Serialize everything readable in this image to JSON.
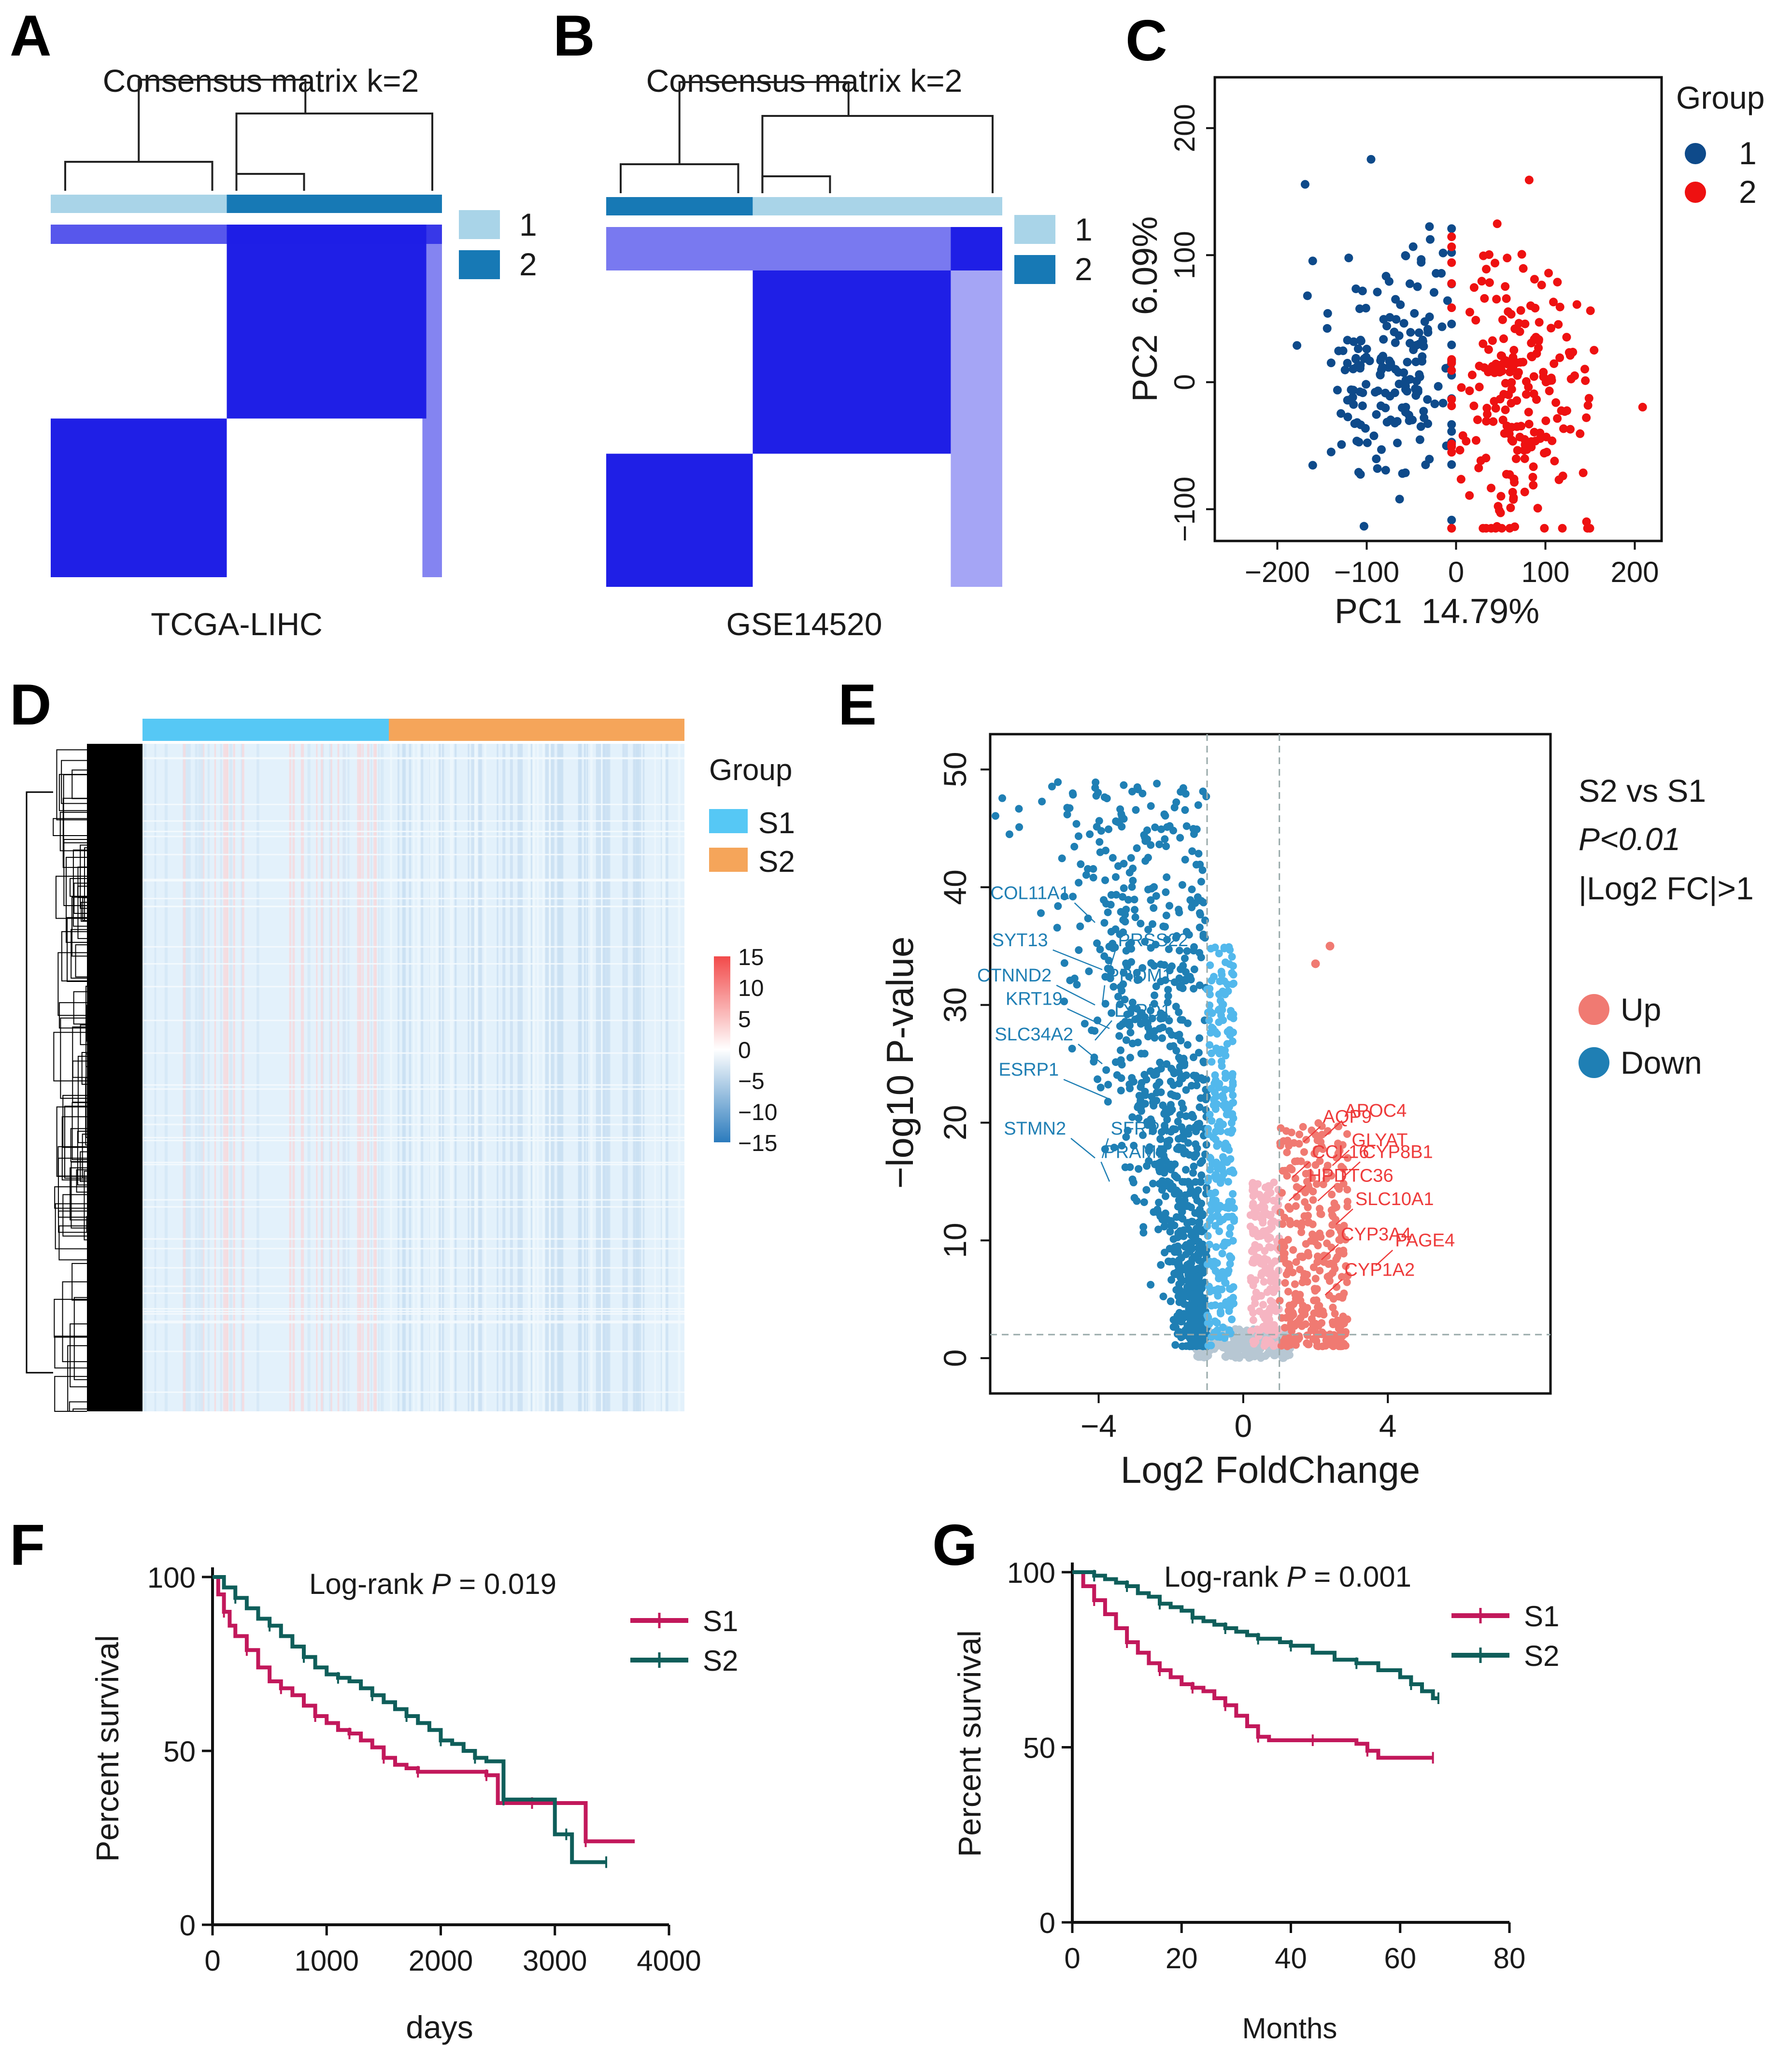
{
  "panel_labels": [
    "A",
    "B",
    "C",
    "D",
    "E",
    "F",
    "G"
  ],
  "chart_data": [
    {
      "id": "A",
      "type": "heatmap",
      "title": "Consensus matrix k=2",
      "caption": "TCGA-LIHC",
      "legend": [
        {
          "label": "1",
          "color": "#a9d4e8"
        },
        {
          "label": "2",
          "color": "#1779b5"
        }
      ],
      "colors": {
        "high": "#1f1fe6",
        "low": "#ffffff"
      },
      "cluster_fraction_first": 0.45
    },
    {
      "id": "B",
      "type": "heatmap",
      "title": "Consensus matrix k=2",
      "caption": "GSE14520",
      "legend": [
        {
          "label": "1",
          "color": "#a9d4e8"
        },
        {
          "label": "2",
          "color": "#1779b5"
        }
      ],
      "colors": {
        "high": "#1f1fe6",
        "low": "#ffffff"
      },
      "cluster_fraction_first": 0.37
    },
    {
      "id": "C",
      "type": "scatter",
      "xlabel": "PC1  14.79%",
      "ylabel": "PC2  6.09%",
      "xlim": [
        -270,
        230
      ],
      "ylim": [
        -125,
        240
      ],
      "xticks": [
        -200,
        -100,
        0,
        100,
        200
      ],
      "xtick_labels": [
        "−200",
        "−100",
        "0",
        "100",
        "200"
      ],
      "yticks": [
        -100,
        0,
        100,
        200
      ],
      "ytick_labels": [
        "−100",
        "0",
        "100",
        "200"
      ],
      "legend_title": "Group",
      "series": [
        {
          "name": "1",
          "color": "#0e4a8a",
          "n": 190,
          "center": [
            -70,
            10
          ],
          "spread": [
            60,
            50
          ]
        },
        {
          "name": "2",
          "color": "#ee1111",
          "n": 230,
          "center": [
            70,
            -10
          ],
          "spread": [
            55,
            55
          ]
        }
      ]
    },
    {
      "id": "D",
      "type": "heatmap",
      "legend_title": "Group",
      "groups": [
        {
          "label": "S1",
          "color": "#56c8f5"
        },
        {
          "label": "S2",
          "color": "#f5a55a"
        }
      ],
      "scale_ticks": [
        "15",
        "10",
        "5",
        "0",
        "−5",
        "−10",
        "−15"
      ],
      "scale_range": [
        -15,
        15
      ]
    },
    {
      "id": "E",
      "type": "scatter",
      "xlabel": "Log2 FoldChange",
      "ylabel": "−log10 P-value",
      "xlim": [
        -7,
        8.5
      ],
      "ylim": [
        -3,
        53
      ],
      "xticks": [
        -4,
        0,
        4
      ],
      "xtick_labels": [
        "−4",
        "0",
        "4"
      ],
      "yticks": [
        0,
        10,
        20,
        30,
        40,
        50
      ],
      "ytick_labels": [
        "0",
        "10",
        "20",
        "30",
        "40",
        "50"
      ],
      "thresholds": {
        "fc": [
          -1,
          1
        ],
        "p": 2
      },
      "annotation": [
        "S2 vs S1",
        "P<0.01",
        "|Log2 FC|>1"
      ],
      "legend": [
        {
          "label": "Up",
          "color": "#f07a72"
        },
        {
          "label": "Down",
          "color": "#1f7fb4"
        }
      ],
      "down_labels": [
        {
          "gene": "COL11A1",
          "x": -4.4,
          "y": 39
        },
        {
          "gene": "SYT13",
          "x": -5.0,
          "y": 35
        },
        {
          "gene": "PRSS22",
          "x": -3.6,
          "y": 35
        },
        {
          "gene": "CTNND2",
          "x": -4.9,
          "y": 32
        },
        {
          "gene": "PROM1",
          "x": -3.9,
          "y": 32
        },
        {
          "gene": "KRT19",
          "x": -4.6,
          "y": 30
        },
        {
          "gene": "LYPD1",
          "x": -3.7,
          "y": 29
        },
        {
          "gene": "SLC34A2",
          "x": -4.3,
          "y": 27
        },
        {
          "gene": "ESRP1",
          "x": -4.7,
          "y": 24
        },
        {
          "gene": "STMN2",
          "x": -4.5,
          "y": 19
        },
        {
          "gene": "SFRP4",
          "x": -3.8,
          "y": 19
        },
        {
          "gene": "PRAME",
          "x": -4.0,
          "y": 17
        }
      ],
      "up_labels": [
        {
          "gene": "AQP9",
          "x": 2.2,
          "y": 20
        },
        {
          "gene": "APOC4",
          "x": 2.8,
          "y": 20.5
        },
        {
          "gene": "GLYAT",
          "x": 3.0,
          "y": 18
        },
        {
          "gene": "CYP8B1",
          "x": 3.3,
          "y": 17
        },
        {
          "gene": "CCL16",
          "x": 1.9,
          "y": 17
        },
        {
          "gene": "HPD",
          "x": 1.8,
          "y": 15
        },
        {
          "gene": "TTC36",
          "x": 2.6,
          "y": 15
        },
        {
          "gene": "SLC10A1",
          "x": 3.1,
          "y": 13
        },
        {
          "gene": "PAGE4",
          "x": 4.2,
          "y": 9.5
        },
        {
          "gene": "CYP3A4",
          "x": 2.7,
          "y": 10
        },
        {
          "gene": "CYP1A2",
          "x": 2.8,
          "y": 7
        }
      ]
    },
    {
      "id": "F",
      "type": "line",
      "subtype": "kaplan-meier",
      "xlabel": "days",
      "ylabel": "Percent survival",
      "xlim": [
        0,
        4000
      ],
      "ylim": [
        0,
        100
      ],
      "xticks": [
        0,
        1000,
        2000,
        3000,
        4000
      ],
      "yticks": [
        0,
        50,
        100
      ],
      "annotation": {
        "prefix": "Log-rank ",
        "p": "P",
        "suffix": " = 0.019"
      },
      "series": [
        {
          "name": "S1",
          "color": "#c2185b",
          "x": [
            0,
            50,
            100,
            150,
            200,
            300,
            400,
            500,
            600,
            700,
            800,
            900,
            1000,
            1100,
            1200,
            1300,
            1400,
            1500,
            1600,
            1700,
            1800,
            2000,
            2200,
            2400,
            2500,
            2600,
            2800,
            3000,
            3200,
            3270,
            3500,
            3700
          ],
          "y": [
            100,
            95,
            90,
            86,
            83,
            79,
            74,
            70,
            68,
            66,
            63,
            60,
            58,
            56,
            55,
            53,
            51,
            48,
            46,
            45,
            44,
            44,
            44,
            43,
            35,
            35,
            35,
            35,
            35,
            24,
            24,
            24
          ]
        },
        {
          "name": "S2",
          "color": "#0f5e5a",
          "x": [
            0,
            100,
            200,
            300,
            400,
            500,
            600,
            700,
            800,
            900,
            1000,
            1100,
            1200,
            1300,
            1400,
            1500,
            1600,
            1700,
            1800,
            1900,
            2000,
            2100,
            2200,
            2300,
            2400,
            2500,
            2550,
            2800,
            3000,
            3100,
            3150,
            3300,
            3450
          ],
          "y": [
            100,
            97,
            94,
            91,
            88,
            86,
            83,
            80,
            77,
            74,
            72,
            71,
            70,
            68,
            66,
            64,
            62,
            60,
            58,
            56,
            53,
            52,
            50,
            48,
            47,
            47,
            36,
            36,
            26,
            26,
            18,
            18,
            18
          ]
        }
      ]
    },
    {
      "id": "G",
      "type": "line",
      "subtype": "kaplan-meier",
      "xlabel": "Months",
      "ylabel": "Percent survival",
      "xlim": [
        0,
        80
      ],
      "ylim": [
        0,
        100
      ],
      "xticks": [
        0,
        20,
        40,
        60,
        80
      ],
      "yticks": [
        0,
        50,
        100
      ],
      "annotation": {
        "prefix": "Log-rank ",
        "p": "P",
        "suffix": " = 0.001"
      },
      "series": [
        {
          "name": "S1",
          "color": "#c2185b",
          "x": [
            0,
            2,
            4,
            6,
            8,
            10,
            12,
            14,
            16,
            18,
            20,
            22,
            24,
            26,
            28,
            30,
            32,
            34,
            36,
            40,
            44,
            48,
            52,
            54,
            56,
            60,
            66
          ],
          "y": [
            100,
            96,
            92,
            88,
            84,
            80,
            77,
            74,
            72,
            70,
            68,
            67,
            66,
            64,
            62,
            59,
            56,
            53,
            52,
            52,
            52,
            52,
            51,
            49,
            47,
            47,
            47
          ]
        },
        {
          "name": "S2",
          "color": "#0f5e5a",
          "x": [
            0,
            2,
            4,
            6,
            8,
            10,
            12,
            14,
            16,
            18,
            20,
            22,
            24,
            26,
            28,
            30,
            32,
            34,
            36,
            38,
            40,
            44,
            48,
            52,
            56,
            60,
            62,
            64,
            66,
            67
          ],
          "y": [
            100,
            100,
            99,
            98,
            97,
            96,
            94,
            93,
            91,
            90,
            89,
            87,
            86,
            85,
            84,
            83,
            82,
            81,
            81,
            80,
            79,
            77,
            75,
            74,
            72,
            70,
            68,
            66,
            64,
            64
          ]
        }
      ]
    }
  ]
}
